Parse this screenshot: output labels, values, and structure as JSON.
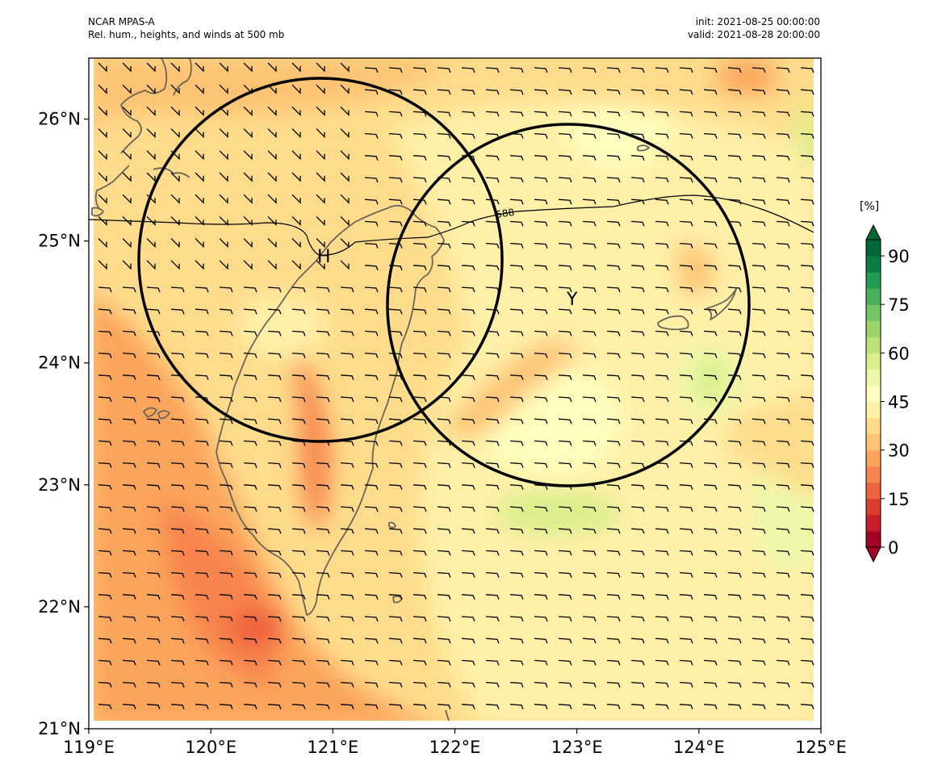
{
  "header": {
    "model": "NCAR MPAS-A",
    "title": "Rel. hum., heights, and winds at 500 mb",
    "init": "init: 2021-08-25 00:00:00",
    "valid": "valid: 2021-08-28 20:00:00"
  },
  "map": {
    "lon_range": [
      119,
      125
    ],
    "lat_range": [
      21,
      26.5
    ],
    "x_ticks": [
      "119°E",
      "120°E",
      "121°E",
      "122°E",
      "123°E",
      "124°E",
      "125°E"
    ],
    "y_ticks": [
      "21°N",
      "22°N",
      "23°N",
      "24°N",
      "25°N",
      "26°N"
    ],
    "contour_label": "588",
    "markers": [
      {
        "label": "H",
        "lon": 120.95,
        "lat": 24.87
      },
      {
        "label": "Y",
        "lon": 122.93,
        "lat": 24.5
      }
    ],
    "circles": [
      {
        "center_lon": 120.95,
        "center_lat": 24.82,
        "radius_deg_lon": 1.48
      },
      {
        "center_lon": 122.95,
        "center_lat": 24.47,
        "radius_deg_lon": 1.48
      }
    ],
    "wind_barbs": "westerly, light (barb grid across domain)",
    "colors": {
      "coast": "#6b6557",
      "contour": "#000000",
      "circle": "#000000"
    }
  },
  "colorbar": {
    "unit": "[%]",
    "ticks": [
      "0",
      "15",
      "30",
      "45",
      "60",
      "75",
      "90"
    ],
    "levels_min": 0,
    "levels_max": 100,
    "colors": [
      "#a50026",
      "#c5202a",
      "#dc3d2d",
      "#ee613d",
      "#f7844e",
      "#fba45c",
      "#fdc373",
      "#fedc8c",
      "#fff0a8",
      "#fffebe",
      "#eff8aa",
      "#d9ef8b",
      "#bbe278",
      "#9bd469",
      "#75c465",
      "#4ab05b",
      "#229c52",
      "#0c7e42",
      "#006837"
    ]
  }
}
